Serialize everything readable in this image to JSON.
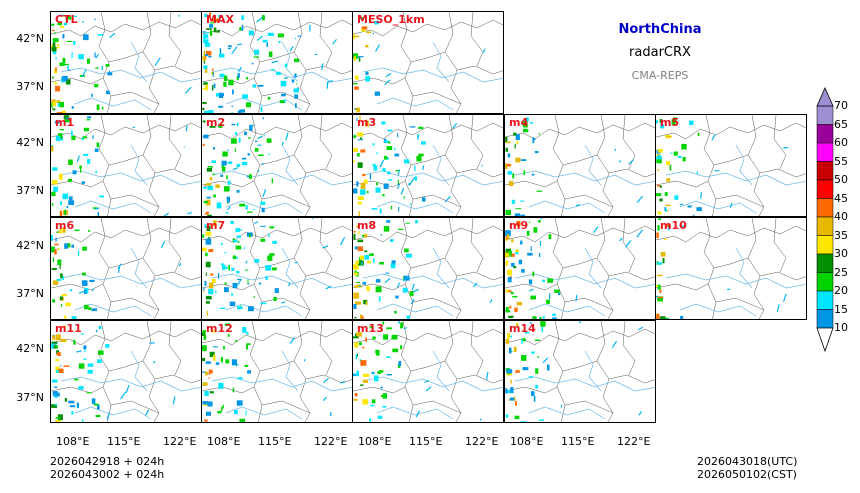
{
  "panels": [
    "CTL",
    "MAX",
    "MESO_1km",
    "m1",
    "m2",
    "m3",
    "m4",
    "m5",
    "m6",
    "m7",
    "m8",
    "m9",
    "m10",
    "m11",
    "m12",
    "m13",
    "m14"
  ],
  "lat_ticks": [
    "42°N",
    "37°N"
  ],
  "lon_ticks": [
    "108°E",
    "115°E",
    "122°E"
  ],
  "info": {
    "region": "NorthChina",
    "variable": "radarCRX",
    "system": "CMA-REPS"
  },
  "colorbar": {
    "labels": [
      "70",
      "65",
      "60",
      "55",
      "50",
      "45",
      "40",
      "35",
      "30",
      "25",
      "20",
      "15",
      "10"
    ],
    "colors": [
      "#9e8fd2",
      "#9a009a",
      "#ff00ff",
      "#c80000",
      "#ff0000",
      "#ff6a00",
      "#e6b800",
      "#ffe600",
      "#009000",
      "#00d400",
      "#00e6ff",
      "#0096e6"
    ]
  },
  "footer": {
    "init_1": "2026042918  +  024h",
    "init_2": "2026043002  +  024h",
    "valid_utc": "2026043018(UTC)",
    "valid_cst": "2026050102(CST)"
  },
  "colors": {
    "label_red": "#e8141e",
    "region_blue": "#0000cc",
    "system_gray": "#808080"
  }
}
